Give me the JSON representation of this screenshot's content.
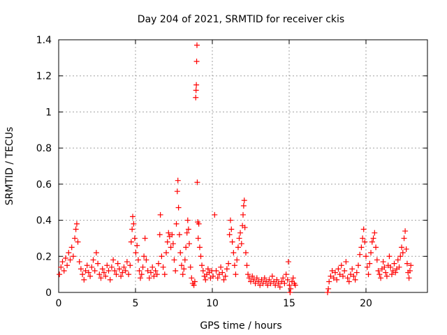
{
  "chart_data": {
    "type": "scatter",
    "title": "Day 204 of 2021, SRMTID for receiver ckis",
    "xlabel": "GPS time / hours",
    "ylabel": "SRMTID / TECUs",
    "xlim": [
      0,
      24
    ],
    "ylim": [
      0,
      1.4
    ],
    "x_ticks": [
      0,
      5,
      10,
      15,
      20
    ],
    "x_tick_labels": [
      "0",
      "5",
      "10",
      "15",
      "20"
    ],
    "y_ticks": [
      0,
      0.2,
      0.4,
      0.6,
      0.8,
      1.0,
      1.2,
      1.4
    ],
    "y_tick_labels": [
      "0",
      "0.2",
      "0.4",
      "0.6",
      "0.8",
      "1",
      "1.2",
      "1.4"
    ],
    "grid": true,
    "marker": "+",
    "marker_color": "#ff0000",
    "series": [
      {
        "name": "SRMTID",
        "points": [
          [
            0.05,
            0.1
          ],
          [
            0.15,
            0.14
          ],
          [
            0.25,
            0.17
          ],
          [
            0.35,
            0.12
          ],
          [
            0.45,
            0.19
          ],
          [
            0.55,
            0.15
          ],
          [
            0.65,
            0.22
          ],
          [
            0.75,
            0.18
          ],
          [
            0.85,
            0.25
          ],
          [
            0.95,
            0.2
          ],
          [
            1.05,
            0.3
          ],
          [
            1.12,
            0.35
          ],
          [
            1.18,
            0.38
          ],
          [
            1.25,
            0.28
          ],
          [
            1.35,
            0.17
          ],
          [
            1.45,
            0.13
          ],
          [
            1.55,
            0.1
          ],
          [
            1.65,
            0.07
          ],
          [
            1.75,
            0.12
          ],
          [
            1.85,
            0.15
          ],
          [
            1.95,
            0.11
          ],
          [
            2.05,
            0.09
          ],
          [
            2.15,
            0.14
          ],
          [
            2.25,
            0.18
          ],
          [
            2.35,
            0.12
          ],
          [
            2.45,
            0.22
          ],
          [
            2.55,
            0.16
          ],
          [
            2.65,
            0.1
          ],
          [
            2.75,
            0.08
          ],
          [
            2.85,
            0.13
          ],
          [
            2.95,
            0.11
          ],
          [
            3.05,
            0.09
          ],
          [
            3.15,
            0.15
          ],
          [
            3.25,
            0.12
          ],
          [
            3.35,
            0.07
          ],
          [
            3.45,
            0.14
          ],
          [
            3.55,
            0.18
          ],
          [
            3.65,
            0.12
          ],
          [
            3.75,
            0.1
          ],
          [
            3.85,
            0.16
          ],
          [
            3.95,
            0.13
          ],
          [
            4.05,
            0.09
          ],
          [
            4.15,
            0.11
          ],
          [
            4.25,
            0.14
          ],
          [
            4.35,
            0.12
          ],
          [
            4.45,
            0.17
          ],
          [
            4.55,
            0.1
          ],
          [
            4.65,
            0.15
          ],
          [
            4.72,
            0.28
          ],
          [
            4.78,
            0.35
          ],
          [
            4.82,
            0.42
          ],
          [
            4.88,
            0.38
          ],
          [
            4.95,
            0.3
          ],
          [
            5.02,
            0.22
          ],
          [
            5.1,
            0.26
          ],
          [
            5.18,
            0.18
          ],
          [
            5.25,
            0.12
          ],
          [
            5.32,
            0.08
          ],
          [
            5.4,
            0.1
          ],
          [
            5.48,
            0.14
          ],
          [
            5.55,
            0.2
          ],
          [
            5.62,
            0.3
          ],
          [
            5.7,
            0.18
          ],
          [
            5.8,
            0.12
          ],
          [
            5.9,
            0.08
          ],
          [
            6.0,
            0.11
          ],
          [
            6.1,
            0.14
          ],
          [
            6.2,
            0.09
          ],
          [
            6.3,
            0.12
          ],
          [
            6.4,
            0.1
          ],
          [
            6.5,
            0.16
          ],
          [
            6.58,
            0.32
          ],
          [
            6.62,
            0.43
          ],
          [
            6.7,
            0.2
          ],
          [
            6.8,
            0.14
          ],
          [
            6.9,
            0.1
          ],
          [
            7.0,
            0.22
          ],
          [
            7.08,
            0.28
          ],
          [
            7.15,
            0.33
          ],
          [
            7.22,
            0.31
          ],
          [
            7.3,
            0.25
          ],
          [
            7.38,
            0.32
          ],
          [
            7.45,
            0.27
          ],
          [
            7.52,
            0.18
          ],
          [
            7.6,
            0.12
          ],
          [
            7.66,
            0.38
          ],
          [
            7.72,
            0.56
          ],
          [
            7.76,
            0.62
          ],
          [
            7.8,
            0.47
          ],
          [
            7.86,
            0.32
          ],
          [
            7.92,
            0.22
          ],
          [
            8.0,
            0.15
          ],
          [
            8.08,
            0.1
          ],
          [
            8.15,
            0.13
          ],
          [
            8.22,
            0.18
          ],
          [
            8.28,
            0.25
          ],
          [
            8.35,
            0.33
          ],
          [
            8.4,
            0.4
          ],
          [
            8.45,
            0.35
          ],
          [
            8.5,
            0.27
          ],
          [
            8.58,
            0.14
          ],
          [
            8.65,
            0.08
          ],
          [
            8.72,
            0.05
          ],
          [
            8.8,
            0.04
          ],
          [
            8.86,
            0.06
          ],
          [
            8.92,
            1.08
          ],
          [
            8.94,
            1.12
          ],
          [
            8.96,
            1.15
          ],
          [
            8.98,
            1.28
          ],
          [
            9.0,
            1.37
          ],
          [
            9.02,
            0.61
          ],
          [
            9.05,
            0.39
          ],
          [
            9.08,
            0.3
          ],
          [
            9.12,
            0.38
          ],
          [
            9.18,
            0.25
          ],
          [
            9.25,
            0.2
          ],
          [
            9.32,
            0.15
          ],
          [
            9.4,
            0.12
          ],
          [
            9.48,
            0.09
          ],
          [
            9.56,
            0.07
          ],
          [
            9.64,
            0.1
          ],
          [
            9.72,
            0.13
          ],
          [
            9.8,
            0.11
          ],
          [
            9.88,
            0.08
          ],
          [
            9.96,
            0.12
          ],
          [
            10.05,
            0.09
          ],
          [
            10.15,
            0.43
          ],
          [
            10.25,
            0.12
          ],
          [
            10.35,
            0.08
          ],
          [
            10.45,
            0.1
          ],
          [
            10.55,
            0.14
          ],
          [
            10.65,
            0.11
          ],
          [
            10.75,
            0.07
          ],
          [
            10.85,
            0.09
          ],
          [
            10.95,
            0.13
          ],
          [
            11.05,
            0.16
          ],
          [
            11.12,
            0.32
          ],
          [
            11.18,
            0.4
          ],
          [
            11.24,
            0.35
          ],
          [
            11.3,
            0.28
          ],
          [
            11.38,
            0.22
          ],
          [
            11.45,
            0.15
          ],
          [
            11.52,
            0.1
          ],
          [
            11.6,
            0.18
          ],
          [
            11.68,
            0.25
          ],
          [
            11.75,
            0.3
          ],
          [
            11.82,
            0.33
          ],
          [
            11.9,
            0.27
          ],
          [
            11.96,
            0.37
          ],
          [
            12.0,
            0.43
          ],
          [
            12.04,
            0.48
          ],
          [
            12.08,
            0.51
          ],
          [
            12.12,
            0.36
          ],
          [
            12.18,
            0.22
          ],
          [
            12.25,
            0.15
          ],
          [
            12.32,
            0.1
          ],
          [
            12.4,
            0.08
          ],
          [
            12.5,
            0.06
          ],
          [
            12.6,
            0.09
          ],
          [
            12.7,
            0.07
          ],
          [
            12.8,
            0.05
          ],
          [
            12.9,
            0.08
          ],
          [
            13.0,
            0.06
          ],
          [
            13.1,
            0.04
          ],
          [
            13.2,
            0.07
          ],
          [
            13.3,
            0.05
          ],
          [
            13.4,
            0.08
          ],
          [
            13.5,
            0.06
          ],
          [
            13.6,
            0.04
          ],
          [
            13.7,
            0.07
          ],
          [
            13.8,
            0.05
          ],
          [
            13.9,
            0.09
          ],
          [
            14.0,
            0.06
          ],
          [
            14.1,
            0.04
          ],
          [
            14.2,
            0.07
          ],
          [
            14.3,
            0.05
          ],
          [
            14.4,
            0.03
          ],
          [
            14.5,
            0.06
          ],
          [
            14.6,
            0.08
          ],
          [
            14.7,
            0.05
          ],
          [
            14.8,
            0.1
          ],
          [
            14.9,
            0.07
          ],
          [
            14.95,
            0.17
          ],
          [
            15.02,
            0.04
          ],
          [
            15.06,
            0.0
          ],
          [
            15.1,
            0.02
          ],
          [
            15.18,
            0.06
          ],
          [
            15.26,
            0.08
          ],
          [
            15.34,
            0.05
          ],
          [
            15.4,
            0.04
          ],
          [
            17.5,
            0.0
          ],
          [
            17.55,
            0.02
          ],
          [
            17.6,
            0.06
          ],
          [
            17.7,
            0.09
          ],
          [
            17.8,
            0.12
          ],
          [
            17.9,
            0.08
          ],
          [
            18.0,
            0.11
          ],
          [
            18.1,
            0.07
          ],
          [
            18.2,
            0.13
          ],
          [
            18.3,
            0.1
          ],
          [
            18.4,
            0.15
          ],
          [
            18.5,
            0.09
          ],
          [
            18.6,
            0.12
          ],
          [
            18.7,
            0.17
          ],
          [
            18.8,
            0.08
          ],
          [
            18.9,
            0.06
          ],
          [
            19.0,
            0.1
          ],
          [
            19.1,
            0.13
          ],
          [
            19.2,
            0.09
          ],
          [
            19.3,
            0.07
          ],
          [
            19.4,
            0.11
          ],
          [
            19.5,
            0.15
          ],
          [
            19.6,
            0.21
          ],
          [
            19.7,
            0.25
          ],
          [
            19.78,
            0.3
          ],
          [
            19.85,
            0.35
          ],
          [
            19.92,
            0.28
          ],
          [
            20.0,
            0.2
          ],
          [
            20.08,
            0.14
          ],
          [
            20.16,
            0.1
          ],
          [
            20.24,
            0.16
          ],
          [
            20.32,
            0.22
          ],
          [
            20.4,
            0.28
          ],
          [
            20.48,
            0.3
          ],
          [
            20.56,
            0.33
          ],
          [
            20.64,
            0.25
          ],
          [
            20.72,
            0.18
          ],
          [
            20.8,
            0.12
          ],
          [
            20.88,
            0.1
          ],
          [
            20.96,
            0.08
          ],
          [
            21.04,
            0.13
          ],
          [
            21.12,
            0.17
          ],
          [
            21.2,
            0.14
          ],
          [
            21.28,
            0.11
          ],
          [
            21.36,
            0.09
          ],
          [
            21.44,
            0.15
          ],
          [
            21.52,
            0.2
          ],
          [
            21.6,
            0.14
          ],
          [
            21.68,
            0.1
          ],
          [
            21.76,
            0.12
          ],
          [
            21.84,
            0.16
          ],
          [
            21.92,
            0.11
          ],
          [
            22.0,
            0.13
          ],
          [
            22.08,
            0.18
          ],
          [
            22.16,
            0.14
          ],
          [
            22.24,
            0.2
          ],
          [
            22.32,
            0.25
          ],
          [
            22.4,
            0.22
          ],
          [
            22.48,
            0.3
          ],
          [
            22.55,
            0.34
          ],
          [
            22.62,
            0.24
          ],
          [
            22.68,
            0.16
          ],
          [
            22.74,
            0.11
          ],
          [
            22.8,
            0.08
          ],
          [
            22.86,
            0.12
          ],
          [
            22.92,
            0.15
          ]
        ]
      }
    ]
  }
}
